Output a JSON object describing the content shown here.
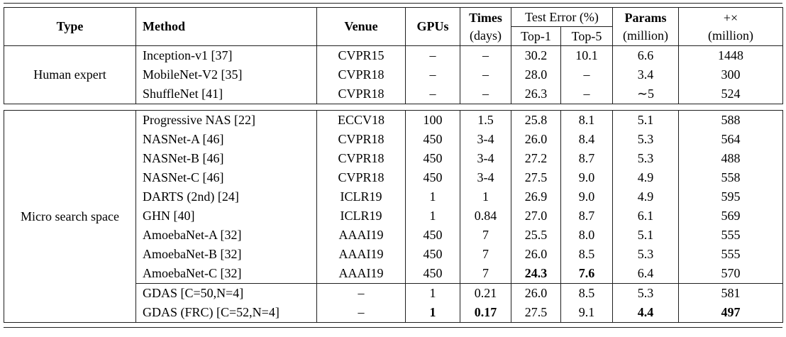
{
  "header": {
    "type": "Type",
    "method": "Method",
    "venue": "Venue",
    "gpus": "GPUs",
    "times_line1": "Times",
    "times_line2": "(days)",
    "test_error": "Test Error (%)",
    "top1": "Top-1",
    "top5": "Top-5",
    "params_line1": "Params",
    "params_line2": "(million)",
    "flops_line1": "+×",
    "flops_line2": "(million)"
  },
  "sections": [
    {
      "type": "Human expert",
      "rows": [
        {
          "method": "Inception-v1 [37]",
          "venue": "CVPR15",
          "gpus": "–",
          "times": "–",
          "top1": "30.2",
          "top5": "10.1",
          "params": "6.6",
          "flops": "1448",
          "bold": []
        },
        {
          "method": "MobileNet-V2 [35]",
          "venue": "CVPR18",
          "gpus": "–",
          "times": "–",
          "top1": "28.0",
          "top5": "–",
          "params": "3.4",
          "flops": "300",
          "bold": []
        },
        {
          "method": "ShuffleNet [41]",
          "venue": "CVPR18",
          "gpus": "–",
          "times": "–",
          "top1": "26.3",
          "top5": "–",
          "params": "∼5",
          "flops": "524",
          "bold": []
        }
      ]
    },
    {
      "type": "Micro search space",
      "rows": [
        {
          "method": "Progressive NAS [22]",
          "venue": "ECCV18",
          "gpus": "100",
          "times": "1.5",
          "top1": "25.8",
          "top5": "8.1",
          "params": "5.1",
          "flops": "588",
          "bold": []
        },
        {
          "method": "NASNet-A [46]",
          "venue": "CVPR18",
          "gpus": "450",
          "times": "3-4",
          "top1": "26.0",
          "top5": "8.4",
          "params": "5.3",
          "flops": "564",
          "bold": []
        },
        {
          "method": "NASNet-B [46]",
          "venue": "CVPR18",
          "gpus": "450",
          "times": "3-4",
          "top1": "27.2",
          "top5": "8.7",
          "params": "5.3",
          "flops": "488",
          "bold": []
        },
        {
          "method": "NASNet-C [46]",
          "venue": "CVPR18",
          "gpus": "450",
          "times": "3-4",
          "top1": "27.5",
          "top5": "9.0",
          "params": "4.9",
          "flops": "558",
          "bold": []
        },
        {
          "method": "DARTS (2nd) [24]",
          "venue": "ICLR19",
          "gpus": "1",
          "times": "1",
          "top1": "26.9",
          "top5": "9.0",
          "params": "4.9",
          "flops": "595",
          "bold": []
        },
        {
          "method": "GHN [40]",
          "venue": "ICLR19",
          "gpus": "1",
          "times": "0.84",
          "top1": "27.0",
          "top5": "8.7",
          "params": "6.1",
          "flops": "569",
          "bold": []
        },
        {
          "method": "AmoebaNet-A [32]",
          "venue": "AAAI19",
          "gpus": "450",
          "times": "7",
          "top1": "25.5",
          "top5": "8.0",
          "params": "5.1",
          "flops": "555",
          "bold": []
        },
        {
          "method": "AmoebaNet-B [32]",
          "venue": "AAAI19",
          "gpus": "450",
          "times": "7",
          "top1": "26.0",
          "top5": "8.5",
          "params": "5.3",
          "flops": "555",
          "bold": []
        },
        {
          "method": "AmoebaNet-C [32]",
          "venue": "AAAI19",
          "gpus": "450",
          "times": "7",
          "top1": "24.3",
          "top5": "7.6",
          "params": "6.4",
          "flops": "570",
          "bold": [
            "top1",
            "top5"
          ]
        },
        {
          "method": "GDAS [C=50,N=4]",
          "venue": "–",
          "gpus": "1",
          "times": "0.21",
          "top1": "26.0",
          "top5": "8.5",
          "params": "5.3",
          "flops": "581",
          "bold": [],
          "cline_before": true
        },
        {
          "method": "GDAS (FRC) [C=52,N=4]",
          "venue": "–",
          "gpus": "1",
          "times": "0.17",
          "top1": "27.5",
          "top5": "9.1",
          "params": "4.4",
          "flops": "497",
          "bold": [
            "gpus",
            "times",
            "params",
            "flops"
          ]
        }
      ]
    }
  ]
}
